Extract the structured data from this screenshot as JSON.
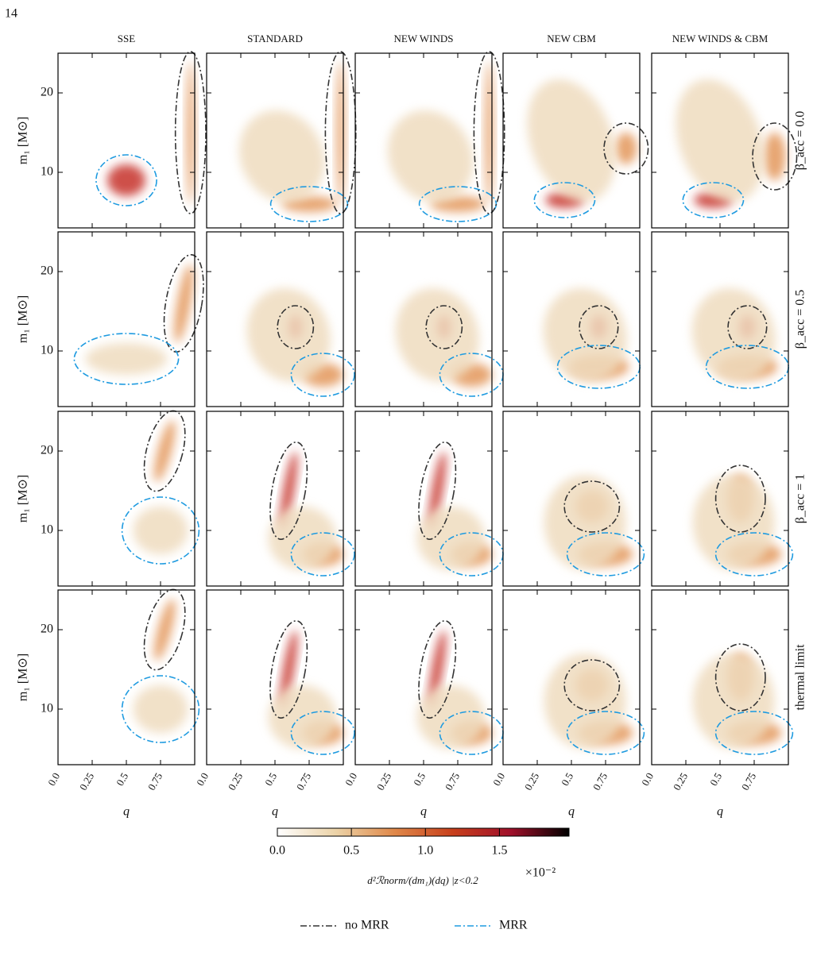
{
  "page_number": "14",
  "chart_data": {
    "type": "heatmap",
    "columns": [
      "SSE",
      "STANDARD",
      "NEW WINDS",
      "NEW CBM",
      "NEW WINDS & CBM"
    ],
    "rows": [
      "β_acc = 0.0",
      "β_acc = 0.5",
      "β_acc = 1",
      "thermal limit"
    ],
    "xlabel": "q",
    "ylabel": "m₁ [M⊙]",
    "xlim": [
      0,
      1
    ],
    "ylim": [
      3,
      25
    ],
    "xticks": [
      {
        "value": 0,
        "label": "0.0"
      },
      0.25,
      0.5,
      0.75
    ],
    "yticks": [
      10,
      20
    ],
    "colorbar": {
      "lim": [
        0,
        1.97
      ],
      "ticks": [
        {
          "value": 0,
          "label": "0.0"
        },
        0.5,
        {
          "value": 1,
          "label": "1.0"
        },
        1.5
      ],
      "colors": [
        "#ffffff",
        "#ecd3a8",
        "#e0894a",
        "#c8401c",
        "#a0102a",
        "#000000"
      ],
      "label": "d²ℛnorm/(dm₁)(dq) |z<0.2",
      "scale_label": "×10⁻²"
    },
    "legend": [
      {
        "name": "no MRR",
        "color": "#333333"
      },
      {
        "name": "MRR",
        "color": "#1f9be0"
      }
    ]
  }
}
